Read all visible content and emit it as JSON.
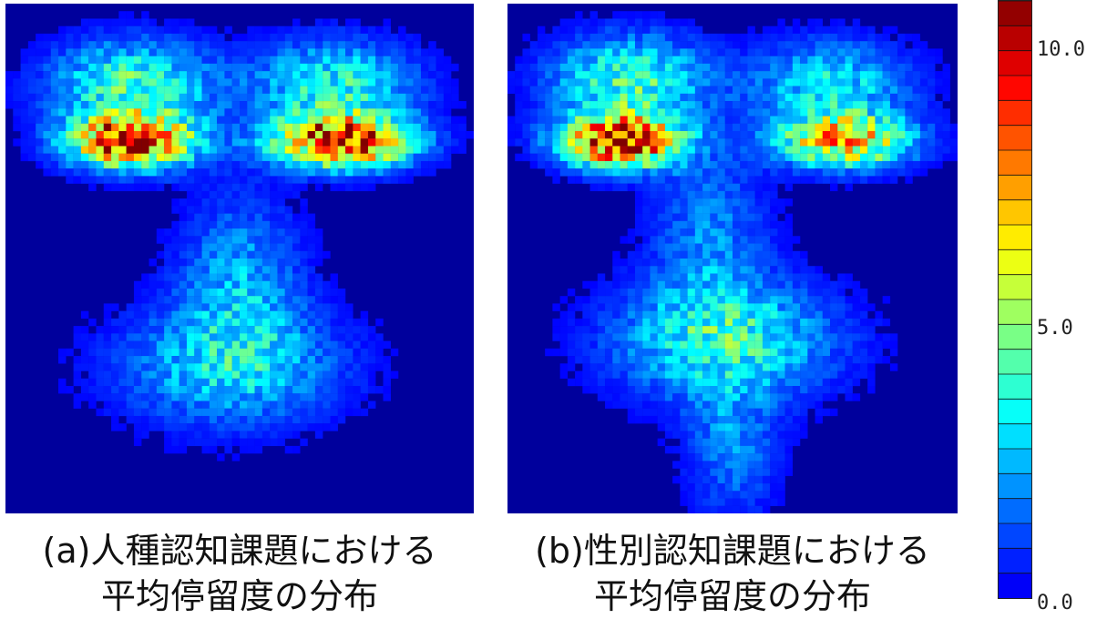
{
  "chart_data": [
    {
      "type": "heatmap",
      "title": "",
      "caption_line1": "(a)人種認知課題における",
      "caption_line2": "平均停留度の分布",
      "grid": {
        "cols": 62,
        "rows": 68
      },
      "hotspots": [
        {
          "region": "left-eye",
          "cx": 0.27,
          "cy": 0.27,
          "peak": 11.5
        },
        {
          "region": "right-eye",
          "cx": 0.72,
          "cy": 0.27,
          "peak": 11.0
        },
        {
          "region": "left-brow",
          "cx": 0.27,
          "cy": 0.16,
          "peak": 4.5
        },
        {
          "region": "right-brow",
          "cx": 0.7,
          "cy": 0.16,
          "peak": 4.0
        },
        {
          "region": "nose",
          "cx": 0.5,
          "cy": 0.55,
          "peak": 2.5
        },
        {
          "region": "mouth",
          "cx": 0.48,
          "cy": 0.71,
          "peak": 3.0
        }
      ]
    },
    {
      "type": "heatmap",
      "title": "",
      "caption_line1": "(b)性別認知課題における",
      "caption_line2": "平均停留度の分布",
      "grid": {
        "cols": 60,
        "rows": 68
      },
      "hotspots": [
        {
          "region": "left-eye",
          "cx": 0.25,
          "cy": 0.27,
          "peak": 11.5
        },
        {
          "region": "right-eye",
          "cx": 0.75,
          "cy": 0.27,
          "peak": 8.0
        },
        {
          "region": "left-brow",
          "cx": 0.27,
          "cy": 0.15,
          "peak": 4.5
        },
        {
          "region": "right-brow",
          "cx": 0.72,
          "cy": 0.16,
          "peak": 3.5
        },
        {
          "region": "nose",
          "cx": 0.45,
          "cy": 0.45,
          "peak": 2.0
        },
        {
          "region": "mouth",
          "cx": 0.48,
          "cy": 0.66,
          "peak": 4.0
        },
        {
          "region": "chin",
          "cx": 0.5,
          "cy": 0.87,
          "peak": 2.0
        }
      ]
    }
  ],
  "colorbar": {
    "min": 0.0,
    "max": 12.0,
    "ticks": [
      {
        "value": 10.0,
        "label": "10.0"
      },
      {
        "value": 5.0,
        "label": "5.0"
      },
      {
        "value": 0.0,
        "label": "0.0"
      }
    ],
    "steps": 24
  }
}
